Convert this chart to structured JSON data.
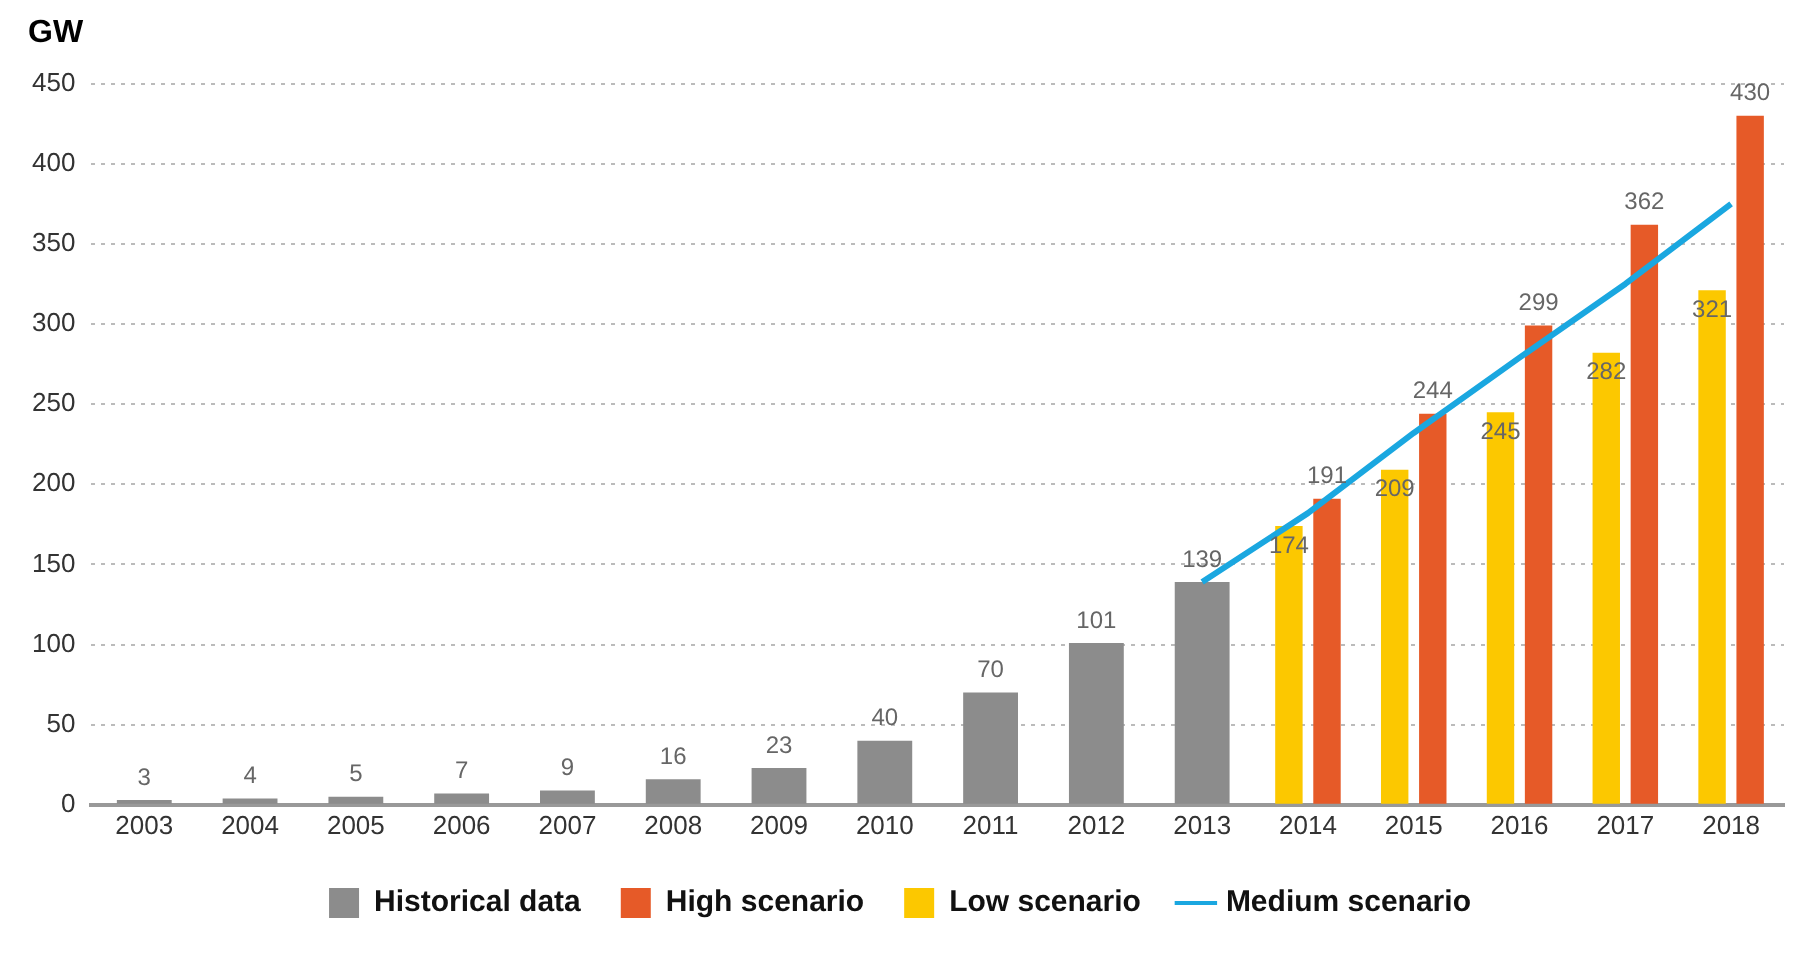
{
  "chart_data": {
    "type": "bar",
    "ylabel": "GW",
    "categories": [
      "2003",
      "2004",
      "2005",
      "2006",
      "2007",
      "2008",
      "2009",
      "2010",
      "2011",
      "2012",
      "2013",
      "2014",
      "2015",
      "2016",
      "2017",
      "2018"
    ],
    "series": [
      {
        "name": "Historical data",
        "color": "#8c8c8c",
        "values": [
          3,
          4,
          5,
          7,
          9,
          16,
          23,
          40,
          70,
          101,
          139,
          null,
          null,
          null,
          null,
          null
        ],
        "value_labels": [
          "3",
          "4",
          "5",
          "7",
          "9",
          "16",
          "23",
          "40",
          "70",
          "101",
          "139",
          null,
          null,
          null,
          null,
          null
        ]
      },
      {
        "name": "High scenario",
        "color": "#e65a28",
        "values": [
          null,
          null,
          null,
          null,
          null,
          null,
          null,
          null,
          null,
          null,
          null,
          191,
          244,
          299,
          362,
          430
        ],
        "value_labels": [
          null,
          null,
          null,
          null,
          null,
          null,
          null,
          null,
          null,
          null,
          null,
          "191",
          "244",
          "299",
          "362",
          "430"
        ]
      },
      {
        "name": "Low scenario",
        "color": "#fcc800",
        "values": [
          null,
          null,
          null,
          null,
          null,
          null,
          null,
          null,
          null,
          null,
          null,
          174,
          209,
          245,
          282,
          321
        ],
        "value_labels": [
          null,
          null,
          null,
          null,
          null,
          null,
          null,
          null,
          null,
          null,
          null,
          "174",
          "209",
          "245",
          "282",
          "321"
        ]
      },
      {
        "name": "Medium scenario",
        "type": "line",
        "color": "#1aa7e0",
        "values": [
          null,
          null,
          null,
          null,
          null,
          null,
          null,
          null,
          null,
          null,
          139,
          182,
          232,
          279,
          325,
          375
        ]
      }
    ],
    "ylim": [
      0,
      450
    ],
    "yticks": [
      0,
      50,
      100,
      150,
      200,
      250,
      300,
      350,
      400,
      450
    ],
    "grid": "y",
    "legend": "bottom"
  }
}
